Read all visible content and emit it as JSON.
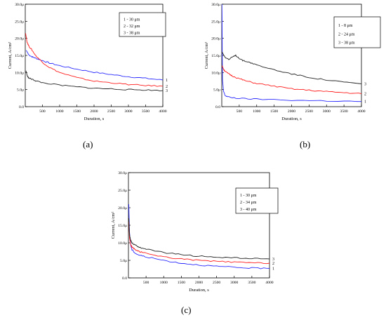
{
  "captions": [
    "(a)",
    "(b)",
    "(c)"
  ],
  "colors": {
    "series1": "#2a2aff",
    "series2": "#ff1e1e",
    "series3": "#222222"
  },
  "chart_data": [
    {
      "type": "line",
      "xlabel": "Duration, s",
      "ylabel": "Current, A/cm²",
      "xlim": [
        0,
        4000
      ],
      "ylim": [
        0,
        30
      ],
      "xticks": [
        "500",
        "1000",
        "1500",
        "2000",
        "2500",
        "3000",
        "3500",
        "4000"
      ],
      "yticks": [
        "0.0",
        "5.0μ",
        "10.0μ",
        "15.0μ",
        "20.0μ",
        "25.0μ",
        "30.0μ"
      ],
      "legend": [
        "1 - 30 μm",
        "2 - 32 μm",
        "3 - 38 μm"
      ],
      "end_labels": [
        "1",
        "2",
        "3"
      ],
      "series": [
        {
          "name": "1 - 30 μm",
          "color": "#2a2aff",
          "x": [
            30,
            100,
            200,
            300,
            500,
            700,
            1000,
            1500,
            2000,
            2500,
            3000,
            3500,
            4000
          ],
          "y": [
            16.5,
            15.2,
            14.6,
            14.2,
            13.5,
            12.8,
            12.0,
            11.0,
            10.1,
            9.4,
            8.8,
            8.3,
            7.8
          ]
        },
        {
          "name": "2 - 32 μm",
          "color": "#ff1e1e",
          "x": [
            10,
            50,
            100,
            200,
            300,
            500,
            700,
            1000,
            1500,
            2000,
            2500,
            3000,
            3500,
            4000
          ],
          "y": [
            21.5,
            19.0,
            17.8,
            16.5,
            15.0,
            13.0,
            11.5,
            10.0,
            8.5,
            7.5,
            7.0,
            6.5,
            6.2,
            6.0
          ]
        },
        {
          "name": "3 - 38 μm",
          "color": "#222222",
          "x": [
            20,
            60,
            100,
            200,
            300,
            500,
            1000,
            1500,
            2000,
            2500,
            3000,
            3500,
            4000
          ],
          "y": [
            10.5,
            9.0,
            8.4,
            8.0,
            7.6,
            7.0,
            6.3,
            5.8,
            5.4,
            5.2,
            5.0,
            4.9,
            4.7
          ]
        }
      ]
    },
    {
      "type": "line",
      "xlabel": "Duration, s",
      "ylabel": "Current, A/cm²",
      "xlim": [
        0,
        4000
      ],
      "ylim": [
        0,
        30
      ],
      "xticks": [
        "500",
        "1000",
        "1500",
        "2000",
        "2500",
        "3000",
        "3500",
        "4000"
      ],
      "yticks": [
        "0.0",
        "5.0μ",
        "10.0μ",
        "15.0μ",
        "20.0μ",
        "25.0μ",
        "30.0μ"
      ],
      "legend": [
        "1 - 8 μm",
        "2 - 24 μm",
        "3 - 38 μm"
      ],
      "end_labels": [
        "1",
        "2",
        "3"
      ],
      "series": [
        {
          "name": "1 - 8 μm",
          "color": "#2a2aff",
          "x": [
            5,
            20,
            50,
            100,
            200,
            500,
            1000,
            2000,
            3000,
            4000
          ],
          "y": [
            30,
            8.0,
            4.5,
            3.2,
            2.8,
            2.4,
            2.2,
            1.9,
            1.7,
            1.5
          ]
        },
        {
          "name": "2 - 24 μm",
          "color": "#ff1e1e",
          "x": [
            10,
            50,
            100,
            200,
            300,
            500,
            700,
            1000,
            1500,
            2000,
            2500,
            3000,
            3500,
            4000
          ],
          "y": [
            12.0,
            11.0,
            10.3,
            9.6,
            9.0,
            8.2,
            7.5,
            6.8,
            6.0,
            5.2,
            4.8,
            4.4,
            4.1,
            3.8
          ]
        },
        {
          "name": "3 - 38 μm",
          "color": "#222222",
          "x": [
            10,
            50,
            100,
            200,
            300,
            400,
            500,
            600,
            800,
            1000,
            1500,
            2000,
            2500,
            3000,
            3500,
            4000
          ],
          "y": [
            16.0,
            15.2,
            14.5,
            13.8,
            14.5,
            15.0,
            14.2,
            13.5,
            13.0,
            12.2,
            10.8,
            9.6,
            8.6,
            7.8,
            7.2,
            6.7
          ]
        }
      ]
    },
    {
      "type": "line",
      "xlabel": "Duration, s",
      "ylabel": "Current, A/cm²",
      "xlim": [
        0,
        4000
      ],
      "ylim": [
        0,
        30
      ],
      "xticks": [
        "500",
        "1000",
        "1500",
        "2000",
        "2500",
        "3000",
        "3500",
        "4000"
      ],
      "yticks": [
        "0.0",
        "5.0μ",
        "10.0μ",
        "15.0μ",
        "20.0μ",
        "25.0μ",
        "30.0μ"
      ],
      "legend": [
        "1 - 30 μm",
        "2 - 34 μm",
        "3 - 40 μm"
      ],
      "end_labels": [
        "1",
        "2",
        "3"
      ],
      "series": [
        {
          "name": "1 - 30 μm",
          "color": "#2a2aff",
          "x": [
            10,
            30,
            60,
            100,
            200,
            300,
            500,
            1000,
            1500,
            2000,
            2500,
            3000,
            3500,
            4000
          ],
          "y": [
            21.0,
            13.0,
            9.5,
            8.0,
            7.0,
            6.5,
            6.0,
            5.0,
            4.2,
            3.7,
            3.3,
            3.0,
            2.8,
            2.7
          ]
        },
        {
          "name": "2 - 34 μm",
          "color": "#ff1e1e",
          "x": [
            10,
            30,
            60,
            100,
            200,
            300,
            500,
            1000,
            1500,
            2000,
            2500,
            3000,
            3500,
            4000
          ],
          "y": [
            16.0,
            11.5,
            9.5,
            8.8,
            8.0,
            7.5,
            7.0,
            6.0,
            5.4,
            5.0,
            4.7,
            4.5,
            4.3,
            4.2
          ]
        },
        {
          "name": "3 - 40 μm",
          "color": "#222222",
          "x": [
            10,
            30,
            60,
            100,
            200,
            300,
            500,
            1000,
            1500,
            2000,
            2500,
            3000,
            3500,
            4000
          ],
          "y": [
            17.0,
            12.5,
            10.8,
            10.0,
            9.3,
            8.8,
            8.2,
            7.2,
            6.6,
            6.2,
            5.9,
            5.7,
            5.5,
            5.4
          ]
        }
      ]
    }
  ]
}
